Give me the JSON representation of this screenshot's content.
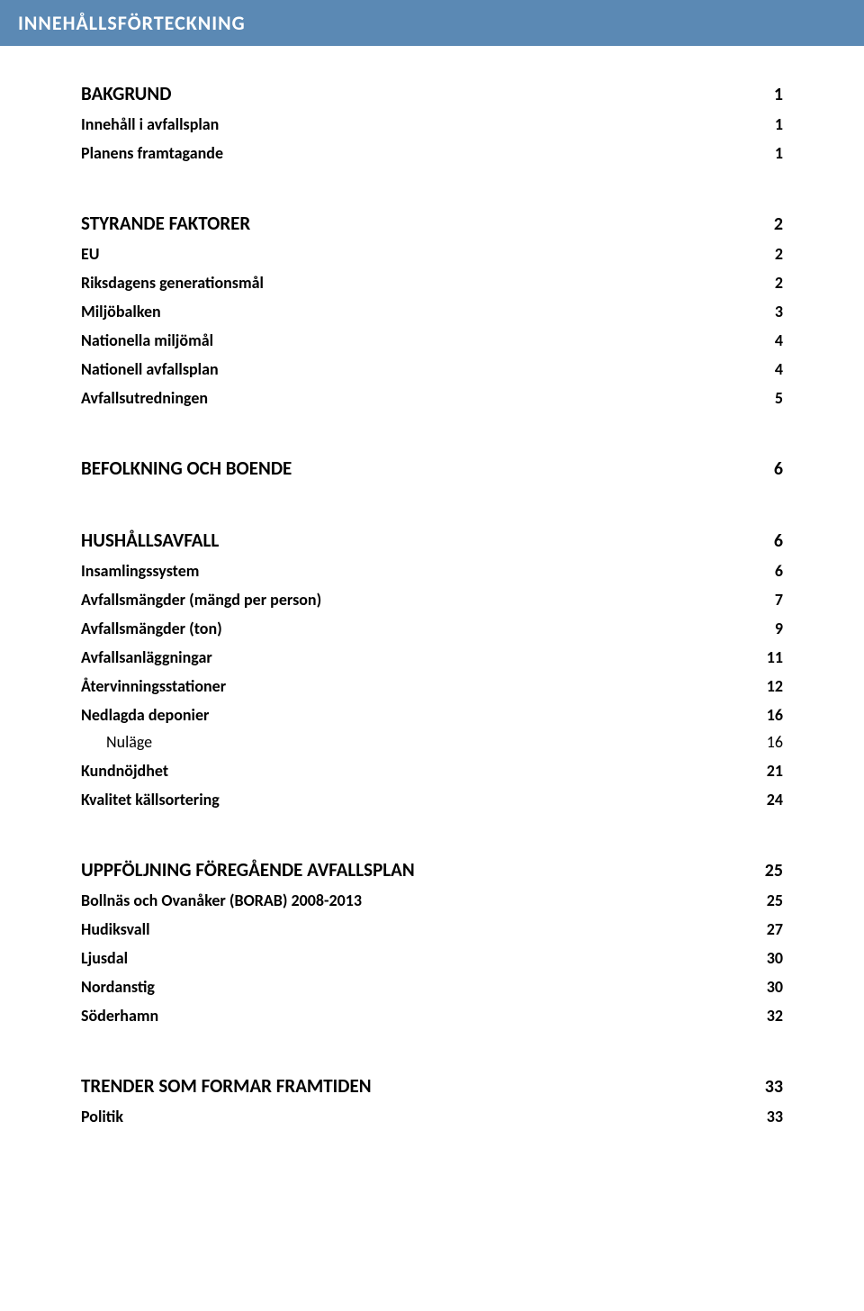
{
  "title": "INNEHÅLLSFÖRTECKNING",
  "colors": {
    "title_bar_bg": "#5b89b4",
    "title_bar_text": "#ffffff",
    "page_bg": "#ffffff",
    "text": "#000000"
  },
  "typography": {
    "title_fontsize_pt": 16,
    "h1_fontsize_pt": 16,
    "h2_fontsize_pt": 14,
    "h3_fontsize_pt": 14,
    "font_family": "Calibri"
  },
  "toc": [
    {
      "level": 1,
      "label": "BAKGRUND",
      "page": "1"
    },
    {
      "level": 2,
      "label": "Innehåll i avfallsplan",
      "page": "1"
    },
    {
      "level": 2,
      "label": "Planens framtagande",
      "page": "1"
    },
    {
      "level": 1,
      "label": "STYRANDE FAKTORER",
      "page": "2"
    },
    {
      "level": 2,
      "label": "EU",
      "page": "2"
    },
    {
      "level": 2,
      "label": "Riksdagens generationsmål",
      "page": "2"
    },
    {
      "level": 2,
      "label": "Miljöbalken",
      "page": "3"
    },
    {
      "level": 2,
      "label": "Nationella miljömål",
      "page": "4"
    },
    {
      "level": 2,
      "label": "Nationell avfallsplan",
      "page": "4"
    },
    {
      "level": 2,
      "label": "Avfallsutredningen",
      "page": "5"
    },
    {
      "level": 1,
      "label": "BEFOLKNING OCH BOENDE",
      "page": "6"
    },
    {
      "level": 1,
      "label": "HUSHÅLLSAVFALL",
      "page": "6"
    },
    {
      "level": 2,
      "label": "Insamlingssystem",
      "page": "6"
    },
    {
      "level": 2,
      "label": "Avfallsmängder (mängd per person)",
      "page": "7"
    },
    {
      "level": 2,
      "label": "Avfallsmängder (ton)",
      "page": "9"
    },
    {
      "level": 2,
      "label": "Avfallsanläggningar",
      "page": "11"
    },
    {
      "level": 2,
      "label": "Återvinningsstationer",
      "page": "12"
    },
    {
      "level": 2,
      "label": "Nedlagda deponier",
      "page": "16"
    },
    {
      "level": 3,
      "label": "Nuläge",
      "page": "16"
    },
    {
      "level": 2,
      "label": "Kundnöjdhet",
      "page": "21"
    },
    {
      "level": 2,
      "label": "Kvalitet källsortering",
      "page": "24"
    },
    {
      "level": 1,
      "label": "UPPFÖLJNING FÖREGÅENDE AVFALLSPLAN",
      "page": "25"
    },
    {
      "level": 2,
      "label": "Bollnäs och Ovanåker (BORAB) 2008-2013",
      "page": "25"
    },
    {
      "level": 2,
      "label": "Hudiksvall",
      "page": "27"
    },
    {
      "level": 2,
      "label": "Ljusdal",
      "page": "30"
    },
    {
      "level": 2,
      "label": "Nordanstig",
      "page": "30"
    },
    {
      "level": 2,
      "label": "Söderhamn",
      "page": "32"
    },
    {
      "level": 1,
      "label": "TRENDER SOM FORMAR FRAMTIDEN",
      "page": "33"
    },
    {
      "level": 2,
      "label": "Politik",
      "page": "33"
    }
  ]
}
